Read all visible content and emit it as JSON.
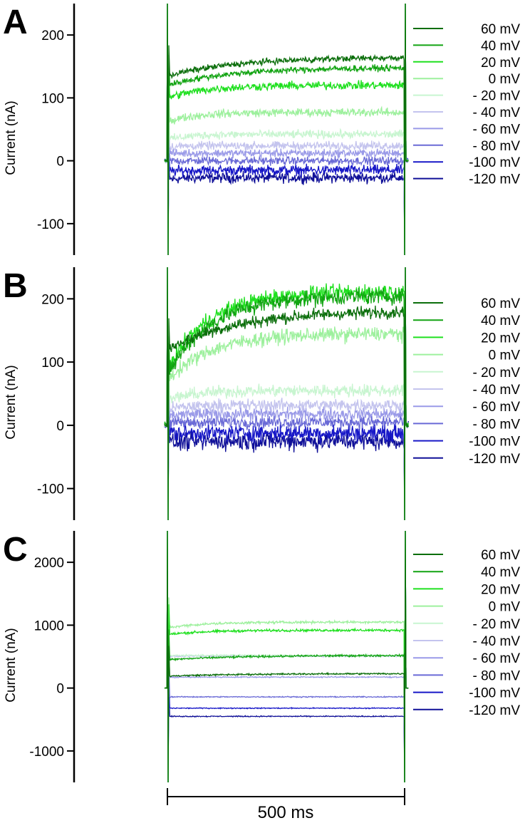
{
  "colors": [
    "#0b6e0b",
    "#12a412",
    "#1fe01f",
    "#9df09d",
    "#c8f5d0",
    "#c4c4ee",
    "#9a9ae8",
    "#6a6ad6",
    "#1818c8",
    "#101098"
  ],
  "chart_data": [
    {
      "type": "line",
      "panel": "A",
      "ylabel": "Current (nA)",
      "yticks": [
        200,
        100,
        0,
        -100
      ],
      "ylim": [
        -150,
        250
      ],
      "xlim": [
        0,
        660
      ],
      "pulse_on_ms": 0,
      "pulse_off_ms": 500,
      "legend": "right",
      "series": [
        {
          "name": "60 mV",
          "start": 135,
          "steady": 165,
          "tau": 150,
          "noise": 3
        },
        {
          "name": "40 mV",
          "start": 120,
          "steady": 148,
          "tau": 130,
          "noise": 3
        },
        {
          "name": "20 mV",
          "start": 100,
          "steady": 120,
          "tau": 80,
          "noise": 4
        },
        {
          "name": "0 mV",
          "start": 62,
          "steady": 77,
          "tau": 60,
          "noise": 4
        },
        {
          "name": "- 20 mV",
          "start": 33,
          "steady": 42,
          "tau": 40,
          "noise": 4
        },
        {
          "name": "- 40 mV",
          "start": 22,
          "steady": 24,
          "tau": 30,
          "noise": 4
        },
        {
          "name": "- 60 mV",
          "start": 12,
          "steady": 12,
          "tau": 30,
          "noise": 4
        },
        {
          "name": "- 80 mV",
          "start": 0,
          "steady": 0,
          "tau": 30,
          "noise": 4
        },
        {
          "name": "-100 mV",
          "start": -17,
          "steady": -15,
          "tau": 30,
          "noise": 5
        },
        {
          "name": "-120 mV",
          "start": -30,
          "steady": -27,
          "tau": 30,
          "noise": 5
        }
      ]
    },
    {
      "type": "line",
      "panel": "B",
      "ylabel": "Current (nA)",
      "yticks": [
        200,
        100,
        0,
        -100
      ],
      "ylim": [
        -150,
        250
      ],
      "xlim": [
        0,
        660
      ],
      "pulse_on_ms": 0,
      "pulse_off_ms": 500,
      "legend": "right",
      "series": [
        {
          "name": "60 mV",
          "start": 120,
          "steady": 182,
          "tau": 150,
          "noise": 6
        },
        {
          "name": "40 mV",
          "start": 80,
          "steady": 205,
          "tau": 90,
          "noise": 8
        },
        {
          "name": "20 mV",
          "start": 90,
          "steady": 212,
          "tau": 90,
          "noise": 8
        },
        {
          "name": "0 mV",
          "start": 70,
          "steady": 145,
          "tau": 90,
          "noise": 7
        },
        {
          "name": "- 20 mV",
          "start": 40,
          "steady": 55,
          "tau": 60,
          "noise": 6
        },
        {
          "name": "- 40 mV",
          "start": 25,
          "steady": 32,
          "tau": 40,
          "noise": 6
        },
        {
          "name": "- 60 mV",
          "start": 15,
          "steady": 18,
          "tau": 40,
          "noise": 6
        },
        {
          "name": "- 80 mV",
          "start": 3,
          "steady": 5,
          "tau": 40,
          "noise": 6
        },
        {
          "name": "-100 mV",
          "start": -12,
          "steady": -12,
          "tau": 40,
          "noise": 8
        },
        {
          "name": "-120 mV",
          "start": -28,
          "steady": -25,
          "tau": 40,
          "noise": 9
        }
      ]
    },
    {
      "type": "line",
      "panel": "C",
      "ylabel": "Current (nA)",
      "yticks": [
        2000,
        1000,
        0,
        -1000
      ],
      "ylim": [
        -1500,
        2500
      ],
      "xlim": [
        0,
        660
      ],
      "pulse_on_ms": 0,
      "pulse_off_ms": 500,
      "legend": "right",
      "series": [
        {
          "name": "60 mV",
          "start": 190,
          "steady": 230,
          "tau": 150,
          "noise": 8
        },
        {
          "name": "40 mV",
          "start": 450,
          "steady": 520,
          "tau": 150,
          "noise": 10
        },
        {
          "name": "20 mV",
          "start": 850,
          "steady": 920,
          "tau": 80,
          "noise": 12
        },
        {
          "name": "0 mV",
          "start": 960,
          "steady": 1050,
          "tau": 80,
          "noise": 12
        },
        {
          "name": "- 20 mV",
          "start": 520,
          "steady": 520,
          "tau": 40,
          "noise": 8
        },
        {
          "name": "- 40 mV",
          "start": 500,
          "steady": 510,
          "tau": 40,
          "noise": 8
        },
        {
          "name": "- 60 mV",
          "start": 170,
          "steady": 175,
          "tau": 40,
          "noise": 6
        },
        {
          "name": "- 80 mV",
          "start": -140,
          "steady": -140,
          "tau": 40,
          "noise": 5
        },
        {
          "name": "-100 mV",
          "start": -320,
          "steady": -320,
          "tau": 40,
          "noise": 5
        },
        {
          "name": "-120 mV",
          "start": -450,
          "steady": -450,
          "tau": 40,
          "noise": 5
        }
      ]
    }
  ],
  "scale_bar": {
    "label": "500 ms",
    "value_ms": 500
  }
}
